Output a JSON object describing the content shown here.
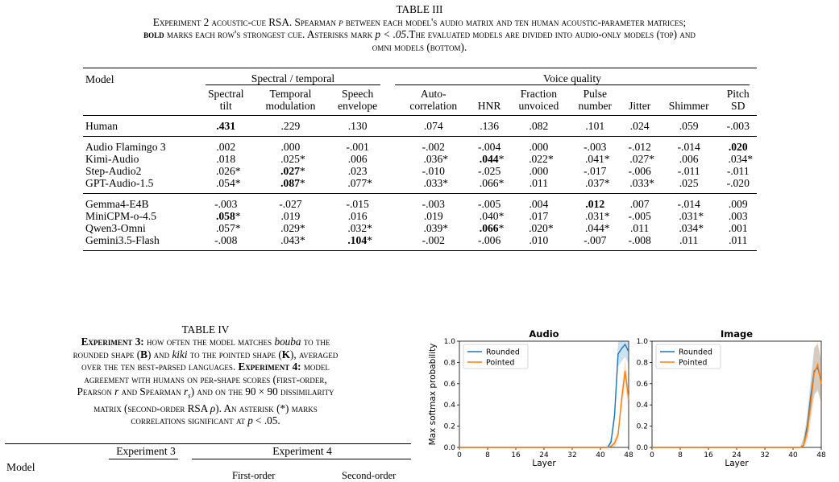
{
  "table3": {
    "label": "TABLE III",
    "caption": {
      "line1_a": "Experiment 2 acoustic-cue RSA. Spearman ",
      "line1_rho": "ρ",
      "line1_b": " between each model's audio matrix and ten human acoustic-parameter matrices;",
      "line2_bold": "bold",
      "line2_a": " marks each row's strongest cue. Asterisks mark ",
      "line2_p": "p < .05",
      "line2_b": ".The evaluated models are divided into audio-only models (top) and",
      "line3": "omni models (bottom)."
    },
    "header": {
      "model": "Model",
      "group_spectral": "Spectral / temporal",
      "group_voice": "Voice quality",
      "columns": [
        [
          "Spectral",
          "tilt"
        ],
        [
          "Temporal",
          "modulation"
        ],
        [
          "Speech",
          "envelope"
        ],
        [
          "Auto-",
          "correlation"
        ],
        [
          "",
          "HNR"
        ],
        [
          "Fraction",
          "unvoiced"
        ],
        [
          "Pulse",
          "number"
        ],
        [
          "",
          "Jitter"
        ],
        [
          "",
          "Shimmer"
        ],
        [
          "Pitch",
          "SD"
        ]
      ]
    },
    "groups": [
      [
        {
          "name": "Human",
          "cells": [
            ".431",
            ".229",
            ".130",
            ".074",
            ".136",
            ".082",
            ".101",
            ".024",
            ".059",
            "-.003"
          ],
          "bold": 0,
          "star": []
        }
      ],
      [
        {
          "name": "Audio Flamingo 3",
          "cells": [
            ".002",
            ".000",
            "-.001",
            "-.002",
            "-.004",
            ".000",
            "-.003",
            "-.012",
            "-.014",
            ".020"
          ],
          "bold": 9,
          "star": []
        },
        {
          "name": "Kimi-Audio",
          "cells": [
            ".018",
            ".025",
            ".006",
            ".036",
            ".044",
            ".022",
            ".041",
            ".027",
            ".006",
            ".034"
          ],
          "bold": 4,
          "star": [
            1,
            3,
            4,
            5,
            6,
            7,
            9
          ]
        },
        {
          "name": "Step-Audio2",
          "cells": [
            ".026",
            ".027",
            ".023",
            "-.010",
            "-.025",
            ".000",
            "-.017",
            "-.006",
            "-.011",
            "-.011"
          ],
          "bold": 1,
          "star": [
            0,
            1
          ]
        },
        {
          "name": "GPT-Audio-1.5",
          "cells": [
            ".054",
            ".087",
            ".077",
            ".033",
            ".066",
            ".011",
            ".037",
            ".033",
            ".025",
            "-.020"
          ],
          "bold": 1,
          "star": [
            0,
            1,
            2,
            3,
            4,
            6,
            7
          ]
        }
      ],
      [
        {
          "name": "Gemma4-E4B",
          "cells": [
            "-.003",
            "-.027",
            "-.015",
            "-.003",
            "-.005",
            ".004",
            ".012",
            ".007",
            "-.014",
            ".009"
          ],
          "bold": 6,
          "star": []
        },
        {
          "name": "MiniCPM-o-4.5",
          "cells": [
            ".058",
            ".019",
            ".016",
            ".019",
            ".040",
            ".017",
            ".031",
            "-.005",
            ".031",
            ".003"
          ],
          "bold": 0,
          "star": [
            0,
            4,
            6,
            8
          ]
        },
        {
          "name": "Qwen3-Omni",
          "cells": [
            ".057",
            ".029",
            ".032",
            ".039",
            ".066",
            ".020",
            ".044",
            ".011",
            ".034",
            ".001"
          ],
          "bold": 4,
          "star": [
            0,
            1,
            2,
            3,
            4,
            5,
            6,
            8
          ]
        },
        {
          "name": "Gemini3.5-Flash",
          "cells": [
            "-.008",
            ".043",
            ".104",
            "-.002",
            "-.006",
            ".010",
            "-.007",
            "-.008",
            ".011",
            ".011"
          ],
          "bold": 2,
          "star": [
            1,
            2
          ]
        }
      ]
    ]
  },
  "table4": {
    "label": "TABLE IV",
    "caption_lines": [
      [
        [
          "b",
          "Experiment 3:"
        ],
        [
          "t",
          " how often the model matches "
        ],
        [
          "i",
          "bouba"
        ],
        [
          "t",
          " to the"
        ]
      ],
      [
        [
          "t",
          "rounded shape ("
        ],
        [
          "b",
          "B"
        ],
        [
          "t",
          ") and "
        ],
        [
          "i",
          "kiki"
        ],
        [
          "t",
          " to the pointed shape ("
        ],
        [
          "b",
          "K"
        ],
        [
          "t",
          "), averaged"
        ]
      ],
      [
        [
          "t",
          "over the ten best-parsed languages. "
        ],
        [
          "b",
          "Experiment 4:"
        ],
        [
          "t",
          " model"
        ]
      ],
      [
        [
          "t",
          "agreement with humans on per-shape scores (first-order,"
        ]
      ],
      [
        [
          "t",
          "Pearson "
        ],
        [
          "i",
          "r"
        ],
        [
          "t",
          " and Spearman "
        ],
        [
          "i",
          "r"
        ],
        [
          "sub",
          "s"
        ],
        [
          "t",
          ") and on the 90 × 90 dissimilarity"
        ]
      ],
      [
        [
          "t",
          "matrix (second-order RSA "
        ],
        [
          "i",
          "ρ"
        ],
        [
          "t",
          "). An asterisk (*) marks"
        ]
      ],
      [
        [
          "t",
          "correlations significant at "
        ],
        [
          "i",
          "p"
        ],
        [
          "t",
          " < .05."
        ]
      ]
    ],
    "header": {
      "model": "Model",
      "exp3": "Experiment 3",
      "exp4": "Experiment 4",
      "first_order": "First-order",
      "second_order": "Second-order"
    }
  },
  "chart_data": [
    {
      "type": "line",
      "title": "Audio",
      "xlabel": "Layer",
      "ylabel": "Max softmax probability",
      "xlim": [
        0,
        48
      ],
      "ylim": [
        0,
        1.0
      ],
      "xticks": [
        0,
        8,
        16,
        24,
        32,
        40,
        48
      ],
      "yticks": [
        0.0,
        0.2,
        0.4,
        0.6,
        0.8,
        1.0
      ],
      "legend": "top-left",
      "series": [
        {
          "name": "Rounded",
          "color": "#1f77b4",
          "x": [
            0,
            4,
            8,
            12,
            16,
            20,
            24,
            28,
            32,
            36,
            40,
            42,
            43,
            44,
            45,
            46,
            47,
            48
          ],
          "y": [
            0,
            0,
            0,
            0,
            0,
            0,
            0,
            0,
            0,
            0,
            0,
            0,
            0.05,
            0.3,
            0.88,
            0.93,
            0.97,
            0.9
          ]
        },
        {
          "name": "Pointed",
          "color": "#ff7f0e",
          "x": [
            0,
            4,
            8,
            12,
            16,
            20,
            24,
            28,
            32,
            36,
            40,
            42,
            43,
            44,
            45,
            46,
            47,
            48
          ],
          "y": [
            0,
            0,
            0,
            0,
            0,
            0,
            0,
            0,
            0,
            0,
            0,
            0,
            0.01,
            0.04,
            0.12,
            0.45,
            0.72,
            0.45
          ]
        }
      ]
    },
    {
      "type": "line",
      "title": "Image",
      "xlabel": "Layer",
      "ylabel": "",
      "xlim": [
        0,
        48
      ],
      "ylim": [
        0,
        1.0
      ],
      "xticks": [
        0,
        8,
        16,
        24,
        32,
        40,
        48
      ],
      "yticks": [
        0.0,
        0.2,
        0.4,
        0.6,
        0.8,
        1.0
      ],
      "legend": "top-left",
      "series": [
        {
          "name": "Rounded",
          "color": "#1f77b4",
          "x": [
            0,
            4,
            8,
            12,
            16,
            20,
            24,
            28,
            32,
            36,
            40,
            42,
            43,
            44,
            45,
            46,
            47,
            48
          ],
          "y": [
            0,
            0,
            0,
            0,
            0,
            0,
            0,
            0,
            0,
            0,
            0,
            0,
            0.02,
            0.2,
            0.48,
            0.72,
            0.75,
            0.62
          ]
        },
        {
          "name": "Pointed",
          "color": "#ff7f0e",
          "x": [
            0,
            4,
            8,
            12,
            16,
            20,
            24,
            28,
            32,
            36,
            40,
            42,
            43,
            44,
            45,
            46,
            47,
            48
          ],
          "y": [
            0,
            0,
            0,
            0,
            0,
            0,
            0,
            0,
            0,
            0,
            0,
            0,
            0.02,
            0.15,
            0.4,
            0.7,
            0.78,
            0.6
          ]
        }
      ]
    }
  ]
}
